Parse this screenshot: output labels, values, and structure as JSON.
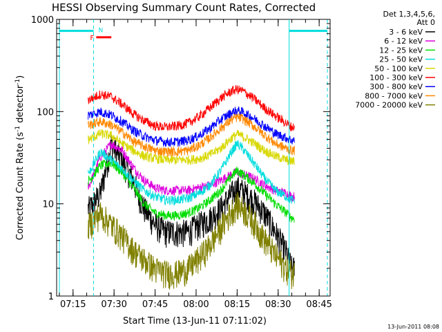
{
  "chart_data": {
    "type": "line",
    "title": "HESSI Observing Summary Count Rates, Corrected",
    "xlabel": "Start Time (13-Jun-11 07:11:02)",
    "ylabel_main": "Corrected Count Rate (s",
    "ylabel_sup1": "-1",
    "ylabel_mid": " detector",
    "ylabel_sup2": "-1",
    "ylabel_end": ")",
    "y_scale": "log",
    "ylim": [
      1,
      1000
    ],
    "xlim_minutes": [
      -2.0,
      98.0
    ],
    "x_ticks": [
      {
        "label": "07:15",
        "minute": 4
      },
      {
        "label": "07:30",
        "minute": 19
      },
      {
        "label": "07:45",
        "minute": 34
      },
      {
        "label": "08:00",
        "minute": 49
      },
      {
        "label": "08:15",
        "minute": 64
      },
      {
        "label": "08:30",
        "minute": 79
      },
      {
        "label": "08:45",
        "minute": 94
      }
    ],
    "y_ticks": [
      {
        "label": "1",
        "value": 1
      },
      {
        "label": "10",
        "value": 10
      },
      {
        "label": "100",
        "value": 100
      },
      {
        "label": "1000",
        "value": 1000
      }
    ],
    "legend_header_1": "Det 1,3,4,5,6,",
    "legend_header_2": "Att 0",
    "legend_placement": "right",
    "data_window_minutes": [
      9.5,
      85.0
    ],
    "series": [
      {
        "name": "3 - 6 keV",
        "color": "#000000",
        "x": [
          10,
          14,
          18,
          22,
          26,
          30,
          34,
          38,
          42,
          46,
          50,
          54,
          58,
          62,
          64,
          66,
          70,
          74,
          78,
          82,
          84
        ],
        "y": [
          9,
          13,
          45,
          30,
          18,
          9,
          6,
          5,
          5,
          5,
          6,
          7,
          9,
          13,
          15,
          14,
          11,
          8,
          5,
          3,
          2
        ]
      },
      {
        "name": "6 - 12 keV",
        "color": "#dd00dd",
        "x": [
          10,
          14,
          18,
          22,
          26,
          30,
          34,
          38,
          42,
          46,
          50,
          54,
          58,
          62,
          64,
          66,
          70,
          74,
          78,
          82,
          84
        ],
        "y": [
          16,
          32,
          45,
          38,
          25,
          18,
          15,
          14,
          14,
          14,
          15,
          16,
          18,
          21,
          22,
          21,
          19,
          16,
          14,
          13,
          12
        ]
      },
      {
        "name": "12 - 25 keV",
        "color": "#00dd00",
        "x": [
          10,
          14,
          18,
          22,
          26,
          30,
          34,
          38,
          42,
          46,
          50,
          54,
          58,
          62,
          64,
          66,
          70,
          74,
          78,
          82,
          84
        ],
        "y": [
          18,
          26,
          28,
          22,
          15,
          10,
          8,
          7.5,
          7.5,
          8,
          9,
          11,
          14,
          20,
          23,
          21,
          17,
          13,
          10,
          8,
          7
        ]
      },
      {
        "name": "25 - 50 keV",
        "color": "#00dddd",
        "x": [
          10,
          14,
          18,
          22,
          26,
          30,
          34,
          38,
          42,
          46,
          50,
          54,
          58,
          62,
          64,
          66,
          70,
          74,
          78,
          82,
          84
        ],
        "y": [
          22,
          37,
          30,
          24,
          18,
          14,
          12,
          11,
          11,
          11.5,
          13,
          16,
          23,
          37,
          45,
          40,
          28,
          19,
          14,
          12,
          11
        ]
      },
      {
        "name": "50 - 100 keV",
        "color": "#d8d800",
        "x": [
          10,
          14,
          18,
          22,
          26,
          30,
          34,
          38,
          42,
          46,
          50,
          54,
          58,
          62,
          64,
          66,
          70,
          74,
          78,
          82,
          84
        ],
        "y": [
          50,
          58,
          55,
          45,
          38,
          33,
          31,
          30,
          30,
          30,
          31,
          34,
          40,
          52,
          57,
          54,
          46,
          38,
          33,
          30,
          29
        ]
      },
      {
        "name": "100 - 300 keV",
        "color": "#ff0000",
        "x": [
          10,
          14,
          18,
          22,
          26,
          30,
          34,
          38,
          42,
          46,
          50,
          54,
          58,
          62,
          64,
          66,
          70,
          74,
          78,
          82,
          84
        ],
        "y": [
          135,
          155,
          145,
          120,
          95,
          80,
          70,
          68,
          70,
          75,
          88,
          110,
          140,
          168,
          175,
          168,
          140,
          110,
          90,
          75,
          68
        ]
      },
      {
        "name": "300 - 800 keV",
        "color": "#0000ff",
        "x": [
          10,
          14,
          18,
          22,
          26,
          30,
          34,
          38,
          42,
          46,
          50,
          54,
          58,
          62,
          64,
          66,
          70,
          74,
          78,
          82,
          84
        ],
        "y": [
          92,
          100,
          92,
          78,
          63,
          54,
          49,
          47,
          47,
          49,
          55,
          66,
          82,
          98,
          103,
          99,
          85,
          70,
          58,
          52,
          49
        ]
      },
      {
        "name": "800 - 7000 keV",
        "color": "#ff8800",
        "x": [
          10,
          14,
          18,
          22,
          26,
          30,
          34,
          38,
          42,
          46,
          50,
          54,
          58,
          62,
          64,
          66,
          70,
          74,
          78,
          82,
          84
        ],
        "y": [
          72,
          78,
          72,
          60,
          48,
          42,
          38,
          37,
          37,
          38,
          43,
          52,
          66,
          82,
          87,
          84,
          70,
          56,
          45,
          40,
          38
        ]
      },
      {
        "name": "7000 - 20000 keV",
        "color": "#808000",
        "x": [
          10,
          14,
          18,
          22,
          26,
          30,
          34,
          38,
          42,
          46,
          50,
          54,
          58,
          62,
          64,
          66,
          70,
          74,
          78,
          82,
          84
        ],
        "y": [
          6,
          8,
          6,
          4.5,
          3.2,
          2.5,
          2,
          1.8,
          1.8,
          2,
          2.6,
          3.6,
          5.5,
          8.5,
          10,
          9,
          6.5,
          4.2,
          2.8,
          2,
          1.8
        ]
      }
    ],
    "annotations": {
      "flag_N": "N",
      "flag_F": "F",
      "saa_bars": [
        {
          "x0": -1.0,
          "x1": 11.5,
          "y": 750
        },
        {
          "x0": 83.0,
          "x1": 97.0,
          "y": 750
        }
      ],
      "saa_dashed_lines": [
        11.5,
        97.0
      ],
      "saa_solid_lines": [
        -1.0,
        83.0
      ],
      "flare_bar": {
        "x0": 12.5,
        "x1": 18.0,
        "y": 640
      }
    },
    "footer_date": "13-Jun-2011 08:08"
  }
}
